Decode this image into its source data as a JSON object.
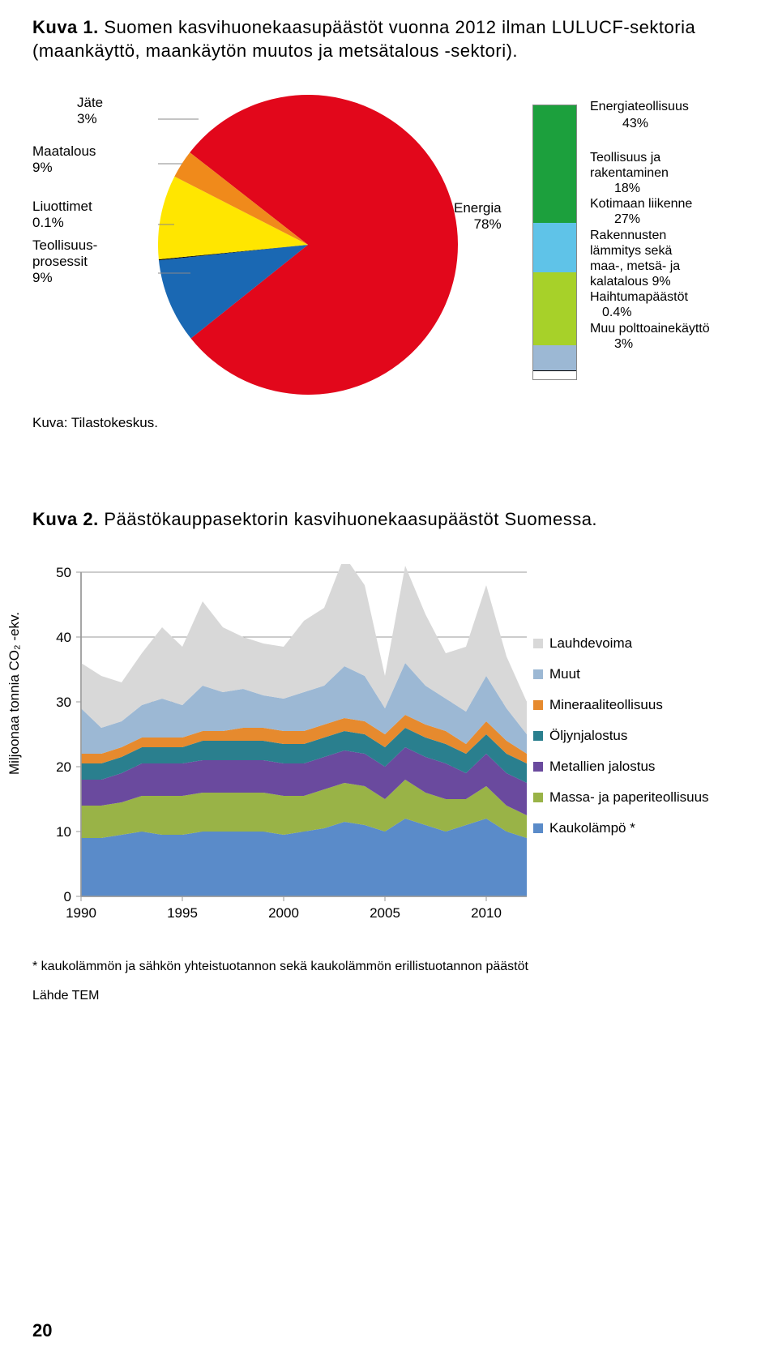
{
  "fig1": {
    "title_prefix": "Kuva 1.",
    "title_rest": "Suomen kasvihuonekaasupäästöt vuonna 2012 ilman LULUCF-sektoria (maankäyttö, maankäytön muutos ja metsätalous -sektori).",
    "source": "Kuva: Tilastokeskus.",
    "pie": {
      "type": "pie",
      "background_color": "#ffffff",
      "label_fontsize": 17,
      "slices": [
        {
          "label": "Energia",
          "value_label": "78%",
          "value": 78,
          "color": "#e2071b"
        },
        {
          "label": "Teollisuus-prosessit",
          "value_label": "9%",
          "value": 9,
          "color": "#1a68b3"
        },
        {
          "label": "Liuottimet",
          "value_label": "0.1%",
          "value": 0.1,
          "color": "#000000"
        },
        {
          "label": "Maatalous",
          "value_label": "9%",
          "value": 9,
          "color": "#ffe600"
        },
        {
          "label": "Jäte",
          "value_label": "3%",
          "value": 3,
          "color": "#f08a1b"
        }
      ],
      "external_labels_left": [
        {
          "line1": "Jäte",
          "line2": "3%"
        },
        {
          "line1": "Maatalous",
          "line2": "9%"
        },
        {
          "line1": "Liuottimet",
          "line2": "0.1%"
        },
        {
          "line1": "Teollisuus-",
          "line2": "prosessit",
          "line3": "9%"
        }
      ],
      "energia_label": {
        "l1": "Energia",
        "l2": "78%"
      }
    },
    "breakdown": {
      "type": "stacked-bar",
      "segments": [
        {
          "label": "Energiateollisuus",
          "value_label": "43%",
          "value": 43,
          "color": "#1ca03d"
        },
        {
          "label": "Teollisuus ja rakentaminen",
          "value_label": "18%",
          "value": 18,
          "color": "#5fc3e8"
        },
        {
          "label": "Kotimaan liikenne",
          "value_label": "27%",
          "value": 27,
          "color": "#a7d129"
        },
        {
          "label": "Rakennusten lämmitys sekä maa-, metsä- ja kalatalous",
          "value_label": "9%",
          "value": 9,
          "color": "#9cb8d4"
        },
        {
          "label": "Haihtumapäästöt",
          "value_label": "0.4%",
          "value": 0.4,
          "color": "#000000"
        },
        {
          "label": "Muu polttoainekäyttö",
          "value_label": "3%",
          "value": 3,
          "color": "#ffffff"
        }
      ],
      "label_block": {
        "l1": "Energiateollisuus",
        "l2": "43%",
        "l3": "Teollisuus ja",
        "l4": "rakentaminen",
        "l5": "18%",
        "l6": "Kotimaan liikenne",
        "l7": "27%",
        "l8": "Rakennusten",
        "l9": "lämmitys sekä",
        "l10": "maa-, metsä- ja",
        "l11": "kalatalous  9%",
        "l12": "Haihtumapäästöt",
        "l13": "0.4%",
        "l14": "Muu polttoainekäyttö",
        "l15": "3%"
      }
    }
  },
  "fig2": {
    "title_prefix": "Kuva 2.",
    "title_rest": "Päästökauppasektorin kasvihuonekaasupäästöt Suomessa.",
    "chart": {
      "type": "area",
      "y_axis_label": "Miljoonaa tonnia CO₂ -ekv.",
      "ylim": [
        0,
        50
      ],
      "ytick_step": 10,
      "xticks": [
        1990,
        1995,
        2000,
        2005,
        2010
      ],
      "xlim": [
        1990,
        2012
      ],
      "background_color": "#ffffff",
      "grid_color": "#9a9a9a",
      "axis_color": "#9a9a9a",
      "label_fontsize": 17,
      "tick_fontsize": 17,
      "series": [
        {
          "name": "Kaukolämpö *",
          "color": "#5a8bc9",
          "values": [
            9,
            9,
            9.5,
            10,
            9.5,
            9.5,
            10,
            10,
            10,
            10,
            9.5,
            10,
            10.5,
            11.5,
            11,
            10,
            12,
            11,
            10,
            11,
            12,
            10,
            9
          ]
        },
        {
          "name": "Massa- ja paperiteollisuus",
          "color": "#99b347",
          "values": [
            5,
            5,
            5,
            5.5,
            6,
            6,
            6,
            6,
            6,
            6,
            6,
            5.5,
            6,
            6,
            6,
            5,
            6,
            5,
            5,
            4,
            5,
            4,
            3.5
          ]
        },
        {
          "name": "Metallien jalostus",
          "color": "#6a4a9e",
          "values": [
            4,
            4,
            4.5,
            5,
            5,
            5,
            5,
            5,
            5,
            5,
            5,
            5,
            5,
            5,
            5,
            5,
            5,
            5.5,
            5.5,
            4,
            5,
            5,
            5
          ]
        },
        {
          "name": "Öljynjalostus",
          "color": "#2a7f8e",
          "values": [
            2.5,
            2.5,
            2.5,
            2.5,
            2.5,
            2.5,
            3,
            3,
            3,
            3,
            3,
            3,
            3,
            3,
            3,
            3,
            3,
            3,
            3,
            3,
            3,
            3,
            3
          ]
        },
        {
          "name": "Mineraaliteollisuus",
          "color": "#e68a2e",
          "values": [
            1.5,
            1.5,
            1.5,
            1.5,
            1.5,
            1.5,
            1.5,
            1.5,
            2,
            2,
            2,
            2,
            2,
            2,
            2,
            2,
            2,
            2,
            2,
            1.5,
            2,
            2,
            1.5
          ]
        },
        {
          "name": "Muut",
          "color": "#9cb8d4",
          "values": [
            7,
            4,
            4,
            5,
            6,
            5,
            7,
            6,
            6,
            5,
            5,
            6,
            6,
            8,
            7,
            4,
            8,
            6,
            5,
            5,
            7,
            5,
            3
          ]
        },
        {
          "name": "Lauhdevoima",
          "color": "#d8d8d8",
          "values": [
            7,
            8,
            6,
            8,
            11,
            9,
            13,
            10,
            8,
            8,
            8,
            11,
            12,
            17,
            14,
            5,
            15,
            11,
            7,
            10,
            14,
            8,
            5
          ]
        }
      ],
      "legend_items": [
        {
          "label": "Lauhdevoima",
          "color": "#d8d8d8"
        },
        {
          "label": "Muut",
          "color": "#9cb8d4"
        },
        {
          "label": "Mineraaliteollisuus",
          "color": "#e68a2e"
        },
        {
          "label": "Öljynjalostus",
          "color": "#2a7f8e"
        },
        {
          "label": "Metallien jalostus",
          "color": "#6a4a9e"
        },
        {
          "label": "Massa- ja paperiteollisuus",
          "color": "#99b347"
        },
        {
          "label": "Kaukolämpö *",
          "color": "#5a8bc9"
        }
      ]
    },
    "footnote": "* kaukolämmön ja sähkön yhteistuotannon sekä kaukolämmön erillistuotannon päästöt",
    "source": "Lähde TEM"
  },
  "page_number": "20"
}
